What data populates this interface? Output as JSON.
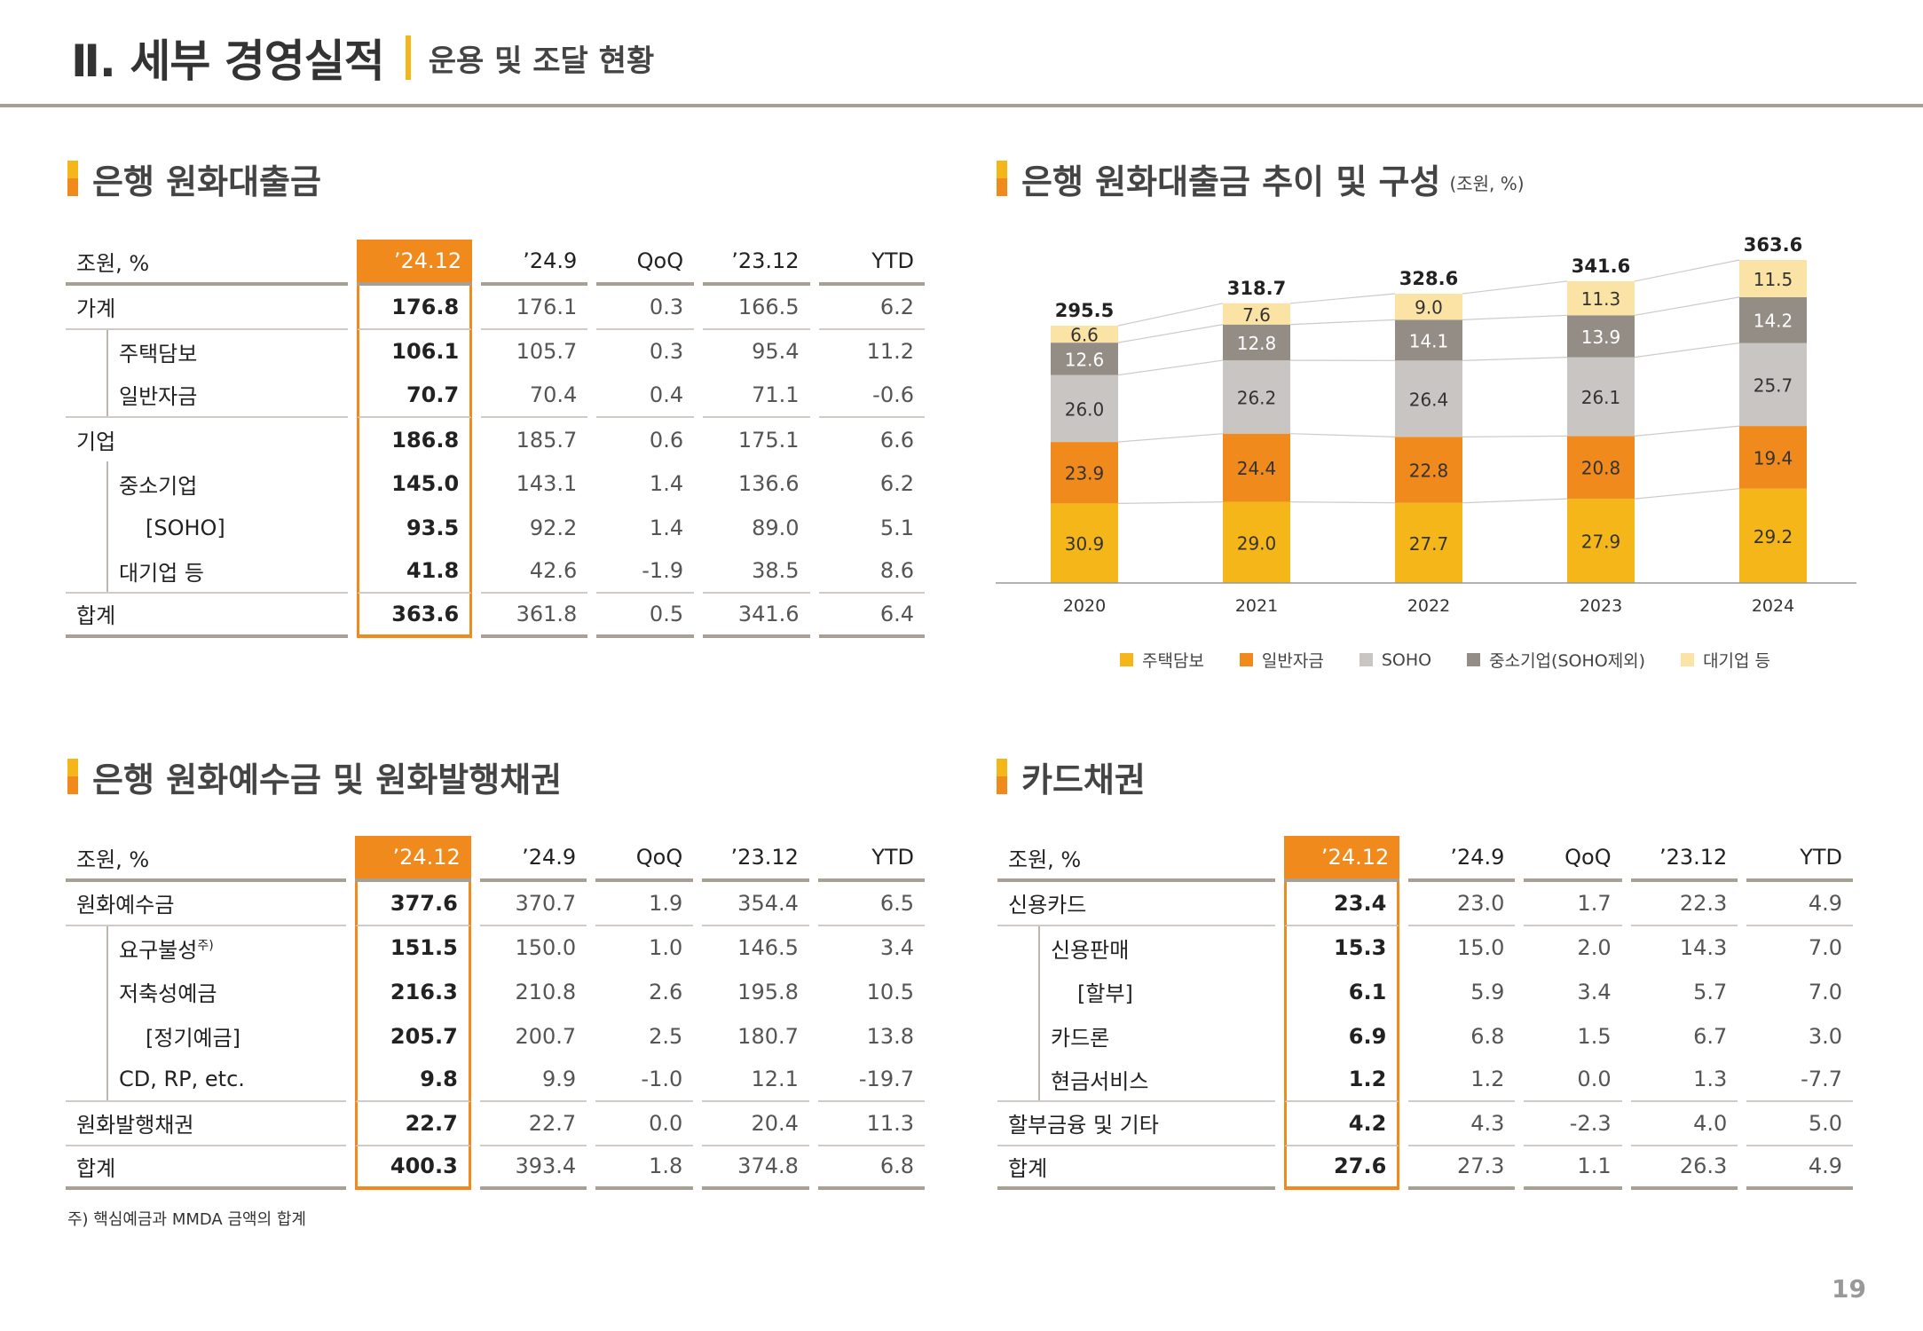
{
  "header": {
    "title": "Ⅱ. 세부 경영실적",
    "subtitle": "운용 및 조달 현황"
  },
  "sections": {
    "loans_title": "은행 원화대출금",
    "chart_title": "은행 원화대출금 추이 및 구성",
    "chart_unit": "(조원, %)",
    "deposits_title": "은행 원화예수금 및 원화발행채권",
    "card_title": "카드채권"
  },
  "loans_table": {
    "headers": [
      "조원, %",
      "’24.12",
      "’24.9",
      "QoQ",
      "’23.12",
      "YTD"
    ],
    "rows": [
      {
        "label": "가계",
        "values": [
          "176.8",
          "176.1",
          "0.3",
          "166.5",
          "6.2"
        ]
      },
      {
        "label": "주택담보",
        "values": [
          "106.1",
          "105.7",
          "0.3",
          "95.4",
          "11.2"
        ]
      },
      {
        "label": "일반자금",
        "values": [
          "70.7",
          "70.4",
          "0.4",
          "71.1",
          "-0.6"
        ]
      },
      {
        "label": "기업",
        "values": [
          "186.8",
          "185.7",
          "0.6",
          "175.1",
          "6.6"
        ]
      },
      {
        "label": "중소기업",
        "values": [
          "145.0",
          "143.1",
          "1.4",
          "136.6",
          "6.2"
        ]
      },
      {
        "label": "[SOHO]",
        "values": [
          "93.5",
          "92.2",
          "1.4",
          "89.0",
          "5.1"
        ]
      },
      {
        "label": "대기업 등",
        "values": [
          "41.8",
          "42.6",
          "-1.9",
          "38.5",
          "8.6"
        ]
      },
      {
        "label": "합계",
        "values": [
          "363.6",
          "361.8",
          "0.5",
          "341.6",
          "6.4"
        ]
      }
    ]
  },
  "deposits_table": {
    "headers": [
      "조원, %",
      "’24.12",
      "’24.9",
      "QoQ",
      "’23.12",
      "YTD"
    ],
    "rows": [
      {
        "label": "원화예수금",
        "values": [
          "377.6",
          "370.7",
          "1.9",
          "354.4",
          "6.5"
        ]
      },
      {
        "label": "요구불성",
        "sup": "주)",
        "values": [
          "151.5",
          "150.0",
          "1.0",
          "146.5",
          "3.4"
        ]
      },
      {
        "label": "저축성예금",
        "values": [
          "216.3",
          "210.8",
          "2.6",
          "195.8",
          "10.5"
        ]
      },
      {
        "label": "[정기예금]",
        "values": [
          "205.7",
          "200.7",
          "2.5",
          "180.7",
          "13.8"
        ]
      },
      {
        "label": "CD, RP, etc.",
        "values": [
          "9.8",
          "9.9",
          "-1.0",
          "12.1",
          "-19.7"
        ]
      },
      {
        "label": "원화발행채권",
        "values": [
          "22.7",
          "22.7",
          "0.0",
          "20.4",
          "11.3"
        ]
      },
      {
        "label": "합계",
        "values": [
          "400.3",
          "393.4",
          "1.8",
          "374.8",
          "6.8"
        ]
      }
    ]
  },
  "card_table": {
    "headers": [
      "조원, %",
      "’24.12",
      "’24.9",
      "QoQ",
      "’23.12",
      "YTD"
    ],
    "rows": [
      {
        "label": "신용카드",
        "values": [
          "23.4",
          "23.0",
          "1.7",
          "22.3",
          "4.9"
        ]
      },
      {
        "label": "신용판매",
        "values": [
          "15.3",
          "15.0",
          "2.0",
          "14.3",
          "7.0"
        ]
      },
      {
        "label": "[할부]",
        "values": [
          "6.1",
          "5.9",
          "3.4",
          "5.7",
          "7.0"
        ]
      },
      {
        "label": "카드론",
        "values": [
          "6.9",
          "6.8",
          "1.5",
          "6.7",
          "3.0"
        ]
      },
      {
        "label": "현금서비스",
        "values": [
          "1.2",
          "1.2",
          "0.0",
          "1.3",
          "-7.7"
        ]
      },
      {
        "label": "할부금융 및 기타",
        "values": [
          "4.2",
          "4.3",
          "-2.3",
          "4.0",
          "5.0"
        ]
      },
      {
        "label": "합계",
        "values": [
          "27.6",
          "27.3",
          "1.1",
          "26.3",
          "4.9"
        ]
      }
    ]
  },
  "footnote": "주) 핵심예금과 MMDA 금액의 합계",
  "page_number": "19",
  "chart_data": {
    "type": "bar",
    "stacked": "percent",
    "title": "은행 원화대출금 추이 및 구성",
    "unit": "(조원, %)",
    "categories": [
      "2020",
      "2021",
      "2022",
      "2023",
      "2024"
    ],
    "totals": [
      295.5,
      318.7,
      328.6,
      341.6,
      363.6
    ],
    "series": [
      {
        "name": "주택담보",
        "color": "#f5b61a",
        "values": [
          30.9,
          29.0,
          27.7,
          27.9,
          29.2
        ]
      },
      {
        "name": "일반자금",
        "color": "#f08a1c",
        "values": [
          23.9,
          24.4,
          22.8,
          20.8,
          19.4
        ]
      },
      {
        "name": "SOHO",
        "color": "#c8c5c2",
        "values": [
          26.0,
          26.2,
          26.4,
          26.1,
          25.7
        ]
      },
      {
        "name": "중소기업(SOHO제외)",
        "color": "#948d86",
        "values": [
          12.6,
          12.8,
          14.1,
          13.9,
          14.2
        ]
      },
      {
        "name": "대기업 등",
        "color": "#fbe3a6",
        "values": [
          6.6,
          7.6,
          9.0,
          11.3,
          11.5
        ]
      }
    ],
    "legend_position": "bottom",
    "grid": false
  }
}
